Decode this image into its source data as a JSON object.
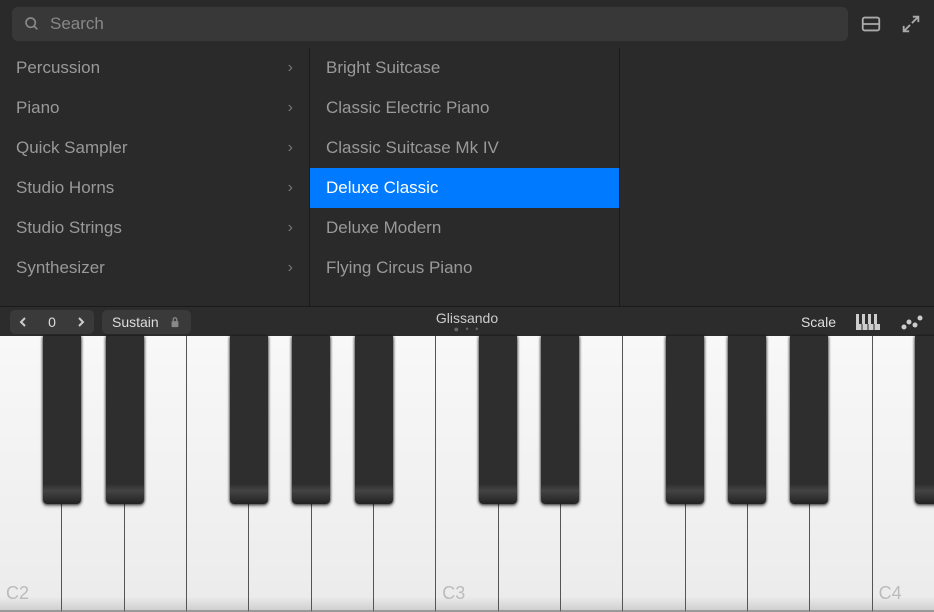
{
  "search": {
    "placeholder": "Search"
  },
  "categories": [
    {
      "label": "Percussion"
    },
    {
      "label": "Piano"
    },
    {
      "label": "Quick Sampler"
    },
    {
      "label": "Studio Horns"
    },
    {
      "label": "Studio Strings"
    },
    {
      "label": "Synthesizer"
    }
  ],
  "presets": [
    {
      "label": "Bright Suitcase",
      "selected": false
    },
    {
      "label": "Classic Electric Piano",
      "selected": false
    },
    {
      "label": "Classic Suitcase Mk IV",
      "selected": false
    },
    {
      "label": "Deluxe Classic",
      "selected": true
    },
    {
      "label": "Deluxe Modern",
      "selected": false
    },
    {
      "label": "Flying Circus Piano",
      "selected": false
    }
  ],
  "controls": {
    "octave": "0",
    "sustain_label": "Sustain",
    "mode_label": "Glissando",
    "scale_label": "Scale"
  },
  "keyboard": {
    "white_keys": 15,
    "labels": {
      "0": "C2",
      "7": "C3",
      "14": "C4"
    },
    "black_key_positions": [
      0,
      1,
      3,
      4,
      5,
      7,
      8,
      10,
      11,
      12,
      14
    ],
    "white_key_width": 62.27
  },
  "colors": {
    "accent": "#007aff",
    "background": "#2a2a2a",
    "text_muted": "#999"
  }
}
